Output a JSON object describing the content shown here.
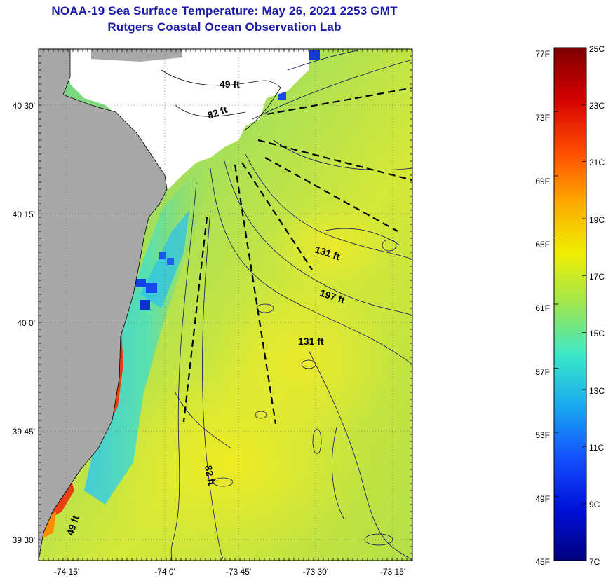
{
  "title_line1": "NOAA-19 Sea Surface Temperature:  May 26, 2021 2253 GMT",
  "title_line2": "Rutgers Coastal Ocean Observation Lab",
  "axes": {
    "lat_ticks": [
      "40 30'",
      "40 15'",
      "40 0'",
      "39 45'",
      "39 30'"
    ],
    "lon_ticks": [
      "-74 15'",
      "-74 0'",
      "-73 45'",
      "-73 30'",
      "-73 15'"
    ]
  },
  "depth_labels": [
    "49 ft",
    "82 ft",
    "131 ft",
    "197 ft",
    "131 ft",
    "82 ft",
    "49 ft"
  ],
  "colorbar": {
    "fahrenheit": [
      "77F",
      "73F",
      "69F",
      "65F",
      "61F",
      "57F",
      "53F",
      "49F",
      "45F"
    ],
    "celsius": [
      "25C",
      "23C",
      "21C",
      "19C",
      "17C",
      "15C",
      "13C",
      "11C",
      "9C",
      "7C"
    ],
    "gradient": [
      "#7f0000",
      "#d40000",
      "#ff4a00",
      "#ffa800",
      "#f0ee00",
      "#9ee650",
      "#3ae8c8",
      "#18a8f0",
      "#1450ff",
      "#0010d8",
      "#00007f"
    ]
  },
  "colors": {
    "land": "#a8a8a8",
    "cloud": "#ffffff",
    "title": "#1a1aa8"
  }
}
